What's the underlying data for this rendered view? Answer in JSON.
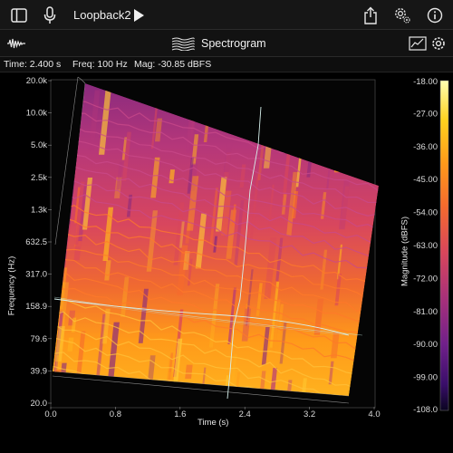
{
  "header": {
    "title": "Loopback2",
    "icons": [
      "sidebar-icon",
      "microphone-icon",
      "play-icon",
      "share-icon",
      "settings-gear-icon",
      "info-icon"
    ]
  },
  "toolbar": {
    "mode_title": "Spectrogram",
    "icons": [
      "waveform-icon",
      "spectrogram-icon",
      "chart-icon",
      "gear-icon"
    ]
  },
  "readout": {
    "time": "Time: 2.400 s",
    "freq": "Freq: 100 Hz",
    "mag": "Mag: -30.85 dBFS"
  },
  "chart_data": {
    "type": "heatmap",
    "xlabel": "Time (s)",
    "ylabel": "Frequency (Hz)",
    "colorbar_label": "Magnitude (dBFS)",
    "x_ticks": [
      "0.0",
      "0.8",
      "1.6",
      "2.4",
      "3.2",
      "4.0"
    ],
    "y_ticks": [
      "20.0k",
      "10.0k",
      "5.0k",
      "2.5k",
      "1.3k",
      "632.5",
      "317.0",
      "158.9",
      "79.6",
      "39.9",
      "20.0"
    ],
    "colorbar_ticks": [
      "-18.00",
      "-27.00",
      "-36.00",
      "-45.00",
      "-54.00",
      "-63.00",
      "-72.00",
      "-81.00",
      "-90.00",
      "-99.00",
      "-108.0"
    ],
    "xlim": [
      0.0,
      4.0
    ],
    "ylim": [
      20.0,
      20000
    ],
    "y_scale": "log",
    "clim": [
      -108.0,
      -18.0
    ],
    "colormap_colors": [
      "#ffffb2",
      "#ffd21e",
      "#ff9a1a",
      "#f56a2d",
      "#d9465b",
      "#a8307a",
      "#70208a",
      "#3a0e6a",
      "#0a0420"
    ],
    "cursor": {
      "time": 2.4,
      "freq": 100
    },
    "grid": true,
    "legend": "colorbar-right"
  }
}
